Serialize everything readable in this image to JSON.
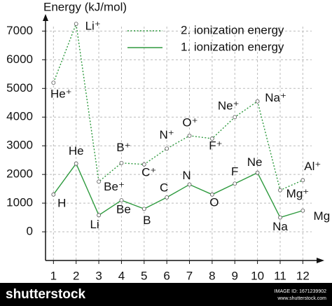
{
  "chart_data": {
    "type": "line",
    "y_label": "Energy (kJ/mol)",
    "x": [
      1,
      2,
      3,
      4,
      5,
      6,
      7,
      8,
      9,
      10,
      11,
      12
    ],
    "xlim": [
      0.65,
      12.7
    ],
    "xticks": [
      1,
      2,
      3,
      4,
      5,
      6,
      7,
      8,
      9,
      10,
      11,
      12
    ],
    "ylim": [
      -1000,
      7400
    ],
    "yticks": [
      0,
      1000,
      2000,
      3000,
      4000,
      5000,
      6000,
      7000
    ],
    "grid": true,
    "legend": "upper right",
    "series": [
      {
        "name": "2. ionization energy",
        "color": "#2e9a3e",
        "line_style": "dotted",
        "values": [
          5200,
          7250,
          1750,
          2400,
          2350,
          2900,
          3350,
          3250,
          4000,
          4550,
          1450,
          1800
        ],
        "point_labels": [
          "He⁺",
          "Li⁺",
          "Be⁺",
          "B⁺",
          "C⁺",
          "N⁺",
          "O⁺",
          "F⁺",
          "Ne⁺",
          "Na⁺",
          "Mg⁺",
          "Al⁺"
        ]
      },
      {
        "name": "1. ionization energy",
        "color": "#2e9a3e",
        "line_style": "solid",
        "values": [
          1300,
          2380,
          580,
          1100,
          800,
          1200,
          1650,
          1300,
          1680,
          2060,
          500,
          740
        ],
        "point_labels": [
          "H",
          "He",
          "Li",
          "Be",
          "B",
          "C",
          "N",
          "O",
          "F",
          "Ne",
          "Na",
          "Mg"
        ]
      }
    ]
  },
  "watermark": {
    "brand": "shutterstock",
    "image_id": "IMAGE ID: 1671239902",
    "site": "www.shutterstock.com"
  }
}
